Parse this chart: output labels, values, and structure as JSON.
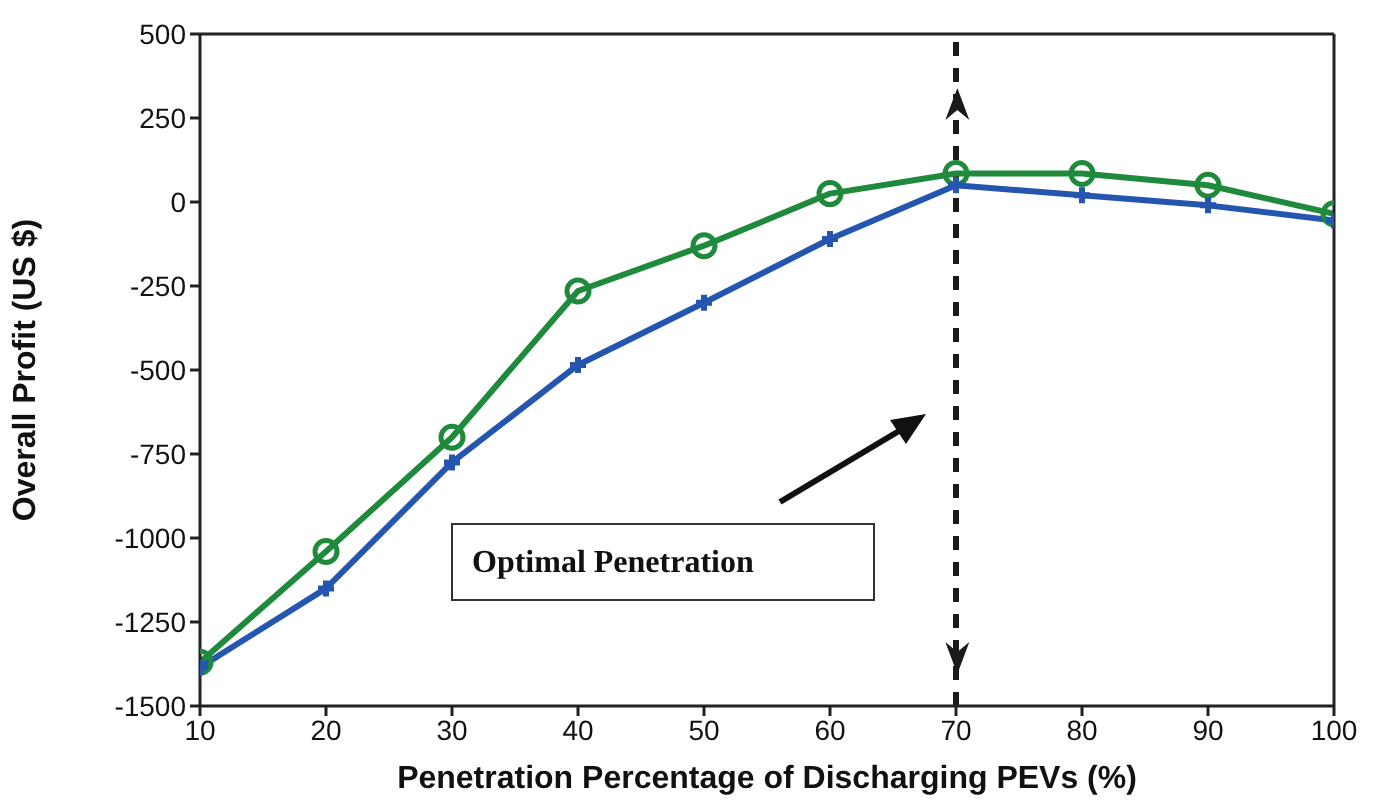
{
  "chart_data": {
    "type": "line",
    "xlabel": "Penetration Percentage of Discharging PEVs (%)",
    "ylabel": "Overall Profit (US $)",
    "x": [
      10,
      20,
      30,
      40,
      50,
      60,
      70,
      80,
      90,
      100
    ],
    "series": [
      {
        "color": "#1f8a3c",
        "marker": "circle",
        "values": [
          -1370,
          -1040,
          -700,
          -265,
          -130,
          25,
          85,
          85,
          50,
          -35
        ]
      },
      {
        "color": "#2456b0",
        "marker": "cross",
        "values": [
          -1385,
          -1150,
          -775,
          -485,
          -300,
          -110,
          50,
          20,
          -10,
          -55
        ]
      }
    ],
    "xlim": [
      10,
      100
    ],
    "xticks": [
      10,
      20,
      30,
      40,
      50,
      60,
      70,
      80,
      90,
      100
    ],
    "ylim": [
      -1500,
      500
    ],
    "yticks": [
      -1500,
      -1250,
      -1000,
      -750,
      -500,
      -250,
      0,
      250,
      500
    ],
    "line_style": "solid",
    "ref_lines": [
      {
        "axis": "x",
        "value": 70,
        "label": null,
        "color": "#1a1a1a",
        "line_style": "dashed"
      }
    ],
    "annotations": [
      "Optimal Penetration"
    ]
  }
}
